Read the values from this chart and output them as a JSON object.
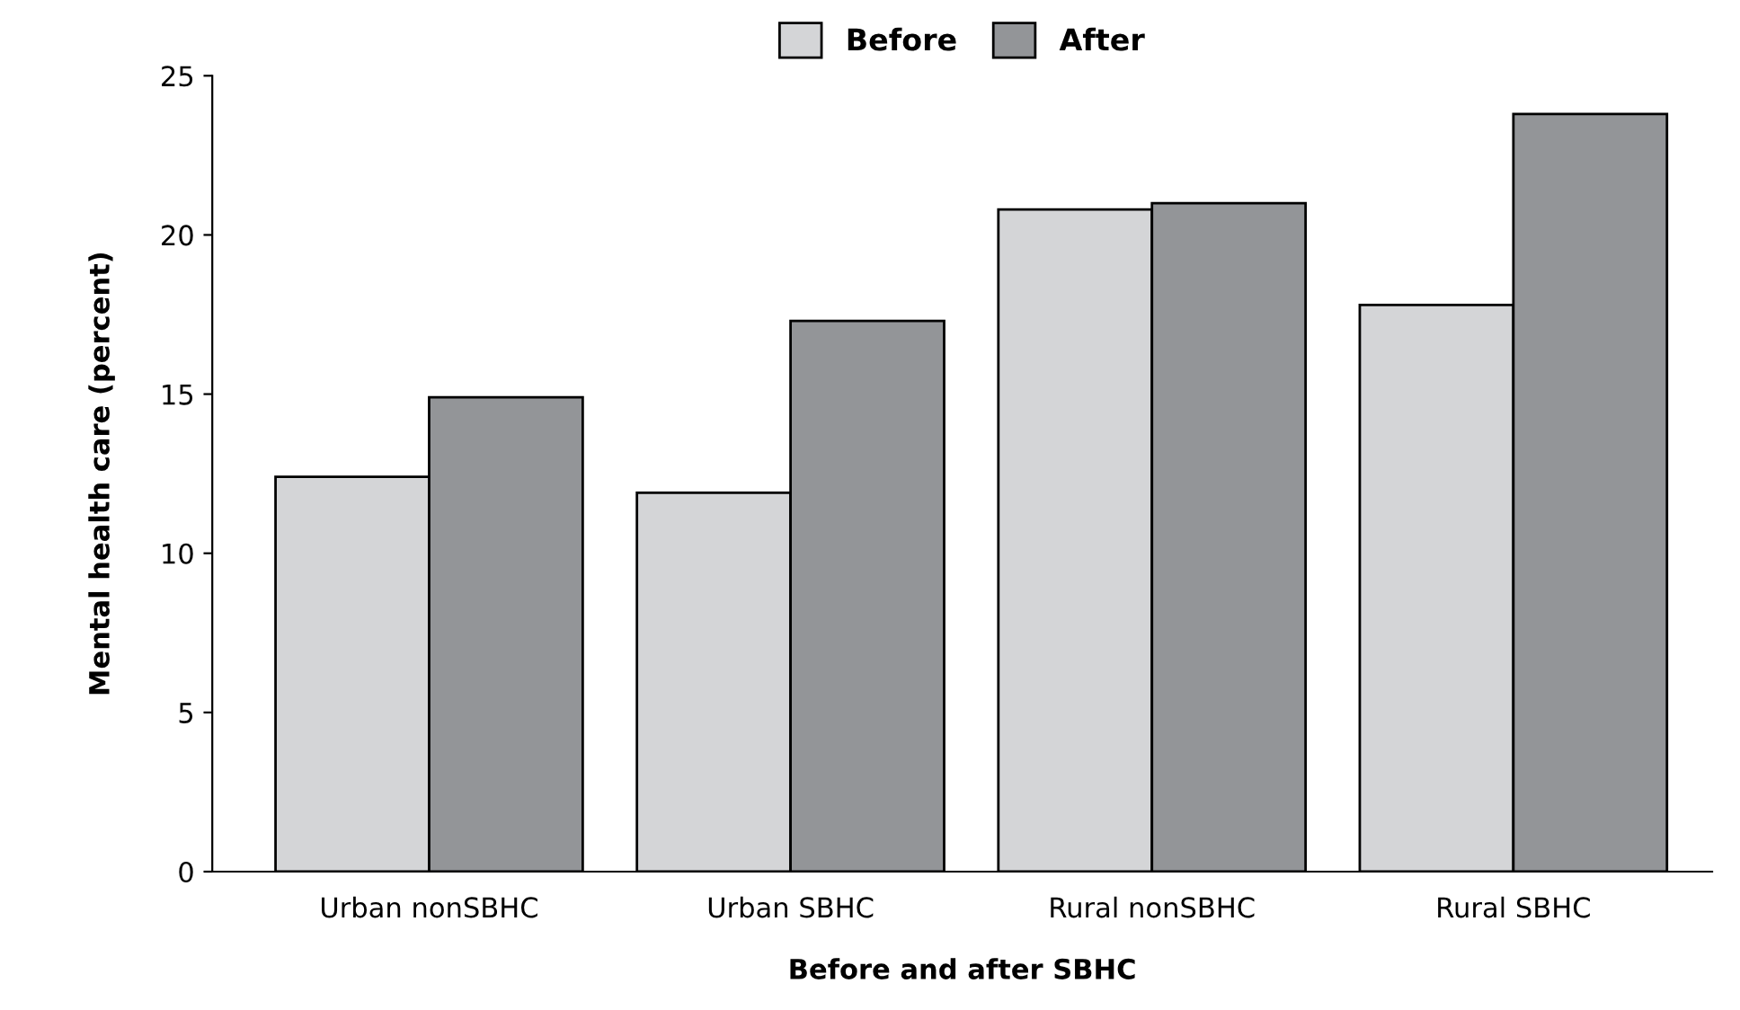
{
  "chart_data": {
    "type": "bar",
    "xlabel": "Before and after SBHC",
    "ylabel": "Mental health care (percent)",
    "categories": [
      "Urban nonSBHC",
      "Urban SBHC",
      "Rural nonSBHC",
      "Rural SBHC"
    ],
    "series": [
      {
        "name": "Before",
        "color": "#d4d5d7",
        "values": [
          12.4,
          11.9,
          20.8,
          17.8
        ]
      },
      {
        "name": "After",
        "color": "#939598",
        "values": [
          14.9,
          17.3,
          21.0,
          23.8
        ]
      }
    ],
    "ylim": [
      0,
      25
    ],
    "yticks": [
      0,
      5,
      10,
      15,
      20,
      25
    ],
    "grid": false,
    "legend": "top"
  }
}
